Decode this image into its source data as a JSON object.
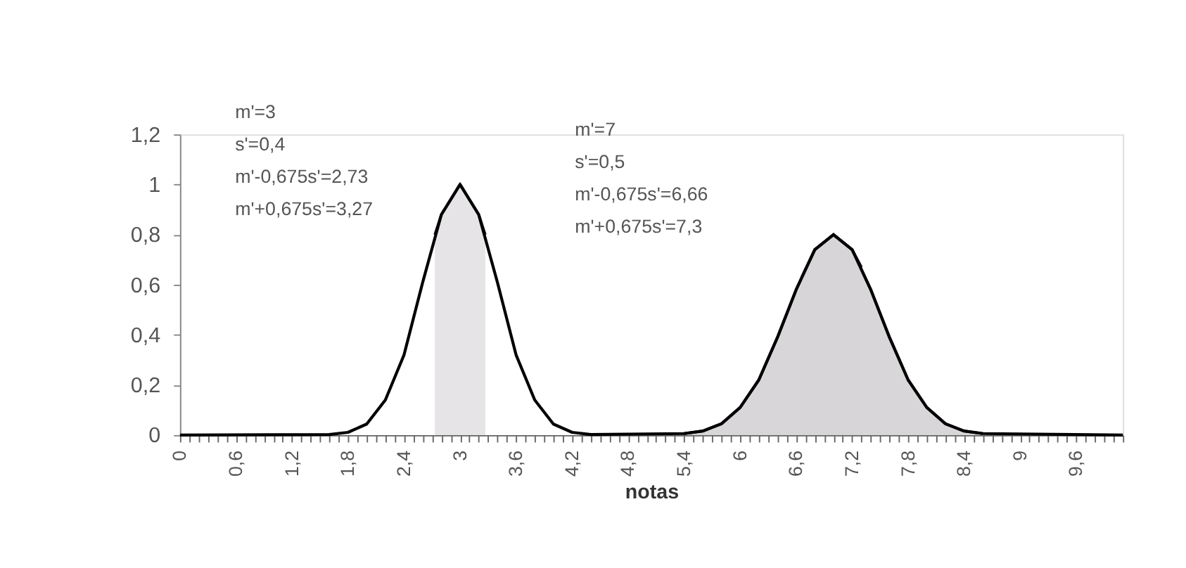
{
  "chart_data": {
    "type": "line",
    "xlabel": "notas",
    "xlim": [
      0,
      10.1
    ],
    "ylim": [
      0,
      1.2
    ],
    "xticks": [
      {
        "value": 0,
        "label": "0"
      },
      {
        "value": 0.1,
        "label": null
      },
      {
        "value": 0.2,
        "label": null
      },
      {
        "value": 0.3,
        "label": null
      },
      {
        "value": 0.4,
        "label": null
      },
      {
        "value": 0.5,
        "label": null
      },
      {
        "value": 0.6,
        "label": "0,6"
      },
      {
        "value": 0.7,
        "label": null
      },
      {
        "value": 0.8,
        "label": null
      },
      {
        "value": 0.9,
        "label": null
      },
      {
        "value": 1,
        "label": null
      },
      {
        "value": 1.1,
        "label": null
      },
      {
        "value": 1.2,
        "label": "1,2"
      },
      {
        "value": 1.3,
        "label": null
      },
      {
        "value": 1.4,
        "label": null
      },
      {
        "value": 1.5,
        "label": null
      },
      {
        "value": 1.6,
        "label": null
      },
      {
        "value": 1.7,
        "label": null
      },
      {
        "value": 1.8,
        "label": "1,8"
      },
      {
        "value": 1.9,
        "label": null
      },
      {
        "value": 2,
        "label": null
      },
      {
        "value": 2.1,
        "label": null
      },
      {
        "value": 2.2,
        "label": null
      },
      {
        "value": 2.3,
        "label": null
      },
      {
        "value": 2.4,
        "label": "2,4"
      },
      {
        "value": 2.5,
        "label": null
      },
      {
        "value": 2.6,
        "label": null
      },
      {
        "value": 2.7,
        "label": null
      },
      {
        "value": 2.8,
        "label": null
      },
      {
        "value": 2.9,
        "label": null
      },
      {
        "value": 3,
        "label": "3"
      },
      {
        "value": 3.1,
        "label": null
      },
      {
        "value": 3.2,
        "label": null
      },
      {
        "value": 3.3,
        "label": null
      },
      {
        "value": 3.4,
        "label": null
      },
      {
        "value": 3.5,
        "label": null
      },
      {
        "value": 3.6,
        "label": "3,6"
      },
      {
        "value": 3.7,
        "label": null
      },
      {
        "value": 3.8,
        "label": null
      },
      {
        "value": 3.9,
        "label": null
      },
      {
        "value": 4,
        "label": null
      },
      {
        "value": 4.1,
        "label": null
      },
      {
        "value": 4.2,
        "label": "4,2"
      },
      {
        "value": 4.3,
        "label": null
      },
      {
        "value": 4.4,
        "label": null
      },
      {
        "value": 4.5,
        "label": null
      },
      {
        "value": 4.6,
        "label": null
      },
      {
        "value": 4.7,
        "label": null
      },
      {
        "value": 4.8,
        "label": "4,8"
      },
      {
        "value": 4.9,
        "label": null
      },
      {
        "value": 5,
        "label": null
      },
      {
        "value": 5.1,
        "label": null
      },
      {
        "value": 5.2,
        "label": null
      },
      {
        "value": 5.3,
        "label": null
      },
      {
        "value": 5.4,
        "label": "5,4"
      },
      {
        "value": 5.5,
        "label": null
      },
      {
        "value": 5.6,
        "label": null
      },
      {
        "value": 5.7,
        "label": null
      },
      {
        "value": 5.8,
        "label": null
      },
      {
        "value": 5.9,
        "label": null
      },
      {
        "value": 6,
        "label": "6"
      },
      {
        "value": 6.1,
        "label": null
      },
      {
        "value": 6.2,
        "label": null
      },
      {
        "value": 6.3,
        "label": null
      },
      {
        "value": 6.4,
        "label": null
      },
      {
        "value": 6.5,
        "label": null
      },
      {
        "value": 6.6,
        "label": "6,6"
      },
      {
        "value": 6.7,
        "label": null
      },
      {
        "value": 6.8,
        "label": null
      },
      {
        "value": 6.9,
        "label": null
      },
      {
        "value": 7,
        "label": null
      },
      {
        "value": 7.1,
        "label": null
      },
      {
        "value": 7.2,
        "label": "7,2"
      },
      {
        "value": 7.3,
        "label": null
      },
      {
        "value": 7.4,
        "label": null
      },
      {
        "value": 7.5,
        "label": null
      },
      {
        "value": 7.6,
        "label": null
      },
      {
        "value": 7.7,
        "label": null
      },
      {
        "value": 7.8,
        "label": "7,8"
      },
      {
        "value": 7.9,
        "label": null
      },
      {
        "value": 8,
        "label": null
      },
      {
        "value": 8.1,
        "label": null
      },
      {
        "value": 8.2,
        "label": null
      },
      {
        "value": 8.3,
        "label": null
      },
      {
        "value": 8.4,
        "label": "8,4"
      },
      {
        "value": 8.5,
        "label": null
      },
      {
        "value": 8.6,
        "label": null
      },
      {
        "value": 8.7,
        "label": null
      },
      {
        "value": 8.8,
        "label": null
      },
      {
        "value": 8.9,
        "label": null
      },
      {
        "value": 9,
        "label": "9"
      },
      {
        "value": 9.1,
        "label": null
      },
      {
        "value": 9.2,
        "label": null
      },
      {
        "value": 9.3,
        "label": null
      },
      {
        "value": 9.4,
        "label": null
      },
      {
        "value": 9.5,
        "label": null
      },
      {
        "value": 9.6,
        "label": "9,6"
      },
      {
        "value": 9.7,
        "label": null
      },
      {
        "value": 9.8,
        "label": null
      },
      {
        "value": 9.9,
        "label": null
      },
      {
        "value": 10,
        "label": null
      },
      {
        "value": 10.1,
        "label": null
      }
    ],
    "yticks": [
      0,
      {
        "value": 0.2,
        "label": "0,2"
      },
      {
        "value": 0.4,
        "label": "0,4"
      },
      {
        "value": 0.6,
        "label": "0,6"
      },
      {
        "value": 0.8,
        "label": "0,8"
      },
      1,
      {
        "value": 1.2,
        "label": "1,2"
      }
    ],
    "grid": false,
    "marker": "none",
    "line_style": "solid",
    "series": [
      {
        "type": "area",
        "color": "#c8c4c8",
        "x": [
          5.4,
          5.6,
          5.8,
          6.0,
          6.2,
          6.4,
          6.6,
          6.8,
          7.0,
          7.2,
          7.4,
          7.6,
          7.8,
          8.0,
          8.2,
          8.4,
          8.6
        ],
        "values": [
          0.006,
          0.016,
          0.045,
          0.11,
          0.22,
          0.39,
          0.58,
          0.74,
          0.8,
          0.74,
          0.58,
          0.39,
          0.22,
          0.11,
          0.045,
          0.016,
          0.006
        ]
      },
      {
        "type": "area",
        "color": "#dcd8dc",
        "x": [
          2.73,
          2.8,
          3.0,
          3.2,
          3.27
        ],
        "values": [
          0.8,
          0.88,
          1,
          0.88,
          0.8
        ]
      },
      {
        "type": "area",
        "color": "#d8d4d8",
        "x": [
          6.66,
          6.8,
          7.0,
          7.2,
          7.3
        ],
        "values": [
          0.63,
          0.74,
          0.8,
          0.74,
          0.67
        ]
      },
      {
        "type": "line",
        "color": "#000000",
        "x": [
          0,
          1.6,
          1.8,
          2.0,
          2.2,
          2.4,
          2.6,
          2.8,
          3.0,
          3.2,
          3.4,
          3.6,
          3.8,
          4.0,
          4.2,
          4.4,
          5.4,
          5.6,
          5.8,
          6.0,
          6.2,
          6.4,
          6.6,
          6.8,
          7.0,
          7.2,
          7.4,
          7.6,
          7.8,
          8.0,
          8.2,
          8.4,
          8.6,
          10.1
        ],
        "values": [
          0,
          0.002,
          0.011,
          0.044,
          0.14,
          0.32,
          0.61,
          0.88,
          1,
          0.88,
          0.61,
          0.32,
          0.14,
          0.044,
          0.011,
          0.002,
          0.006,
          0.016,
          0.045,
          0.11,
          0.22,
          0.39,
          0.58,
          0.74,
          0.8,
          0.74,
          0.58,
          0.39,
          0.22,
          0.11,
          0.045,
          0.016,
          0.006,
          0
        ]
      }
    ],
    "annotations": [
      "m'=3",
      "s'=0,4",
      "m'-0,675s'=2,73",
      "m'+0,675s'=3,27",
      "m'=7",
      "s'=0,5",
      "m'-0,675s'=6,66",
      "m'+0,675s'=7,3"
    ]
  }
}
